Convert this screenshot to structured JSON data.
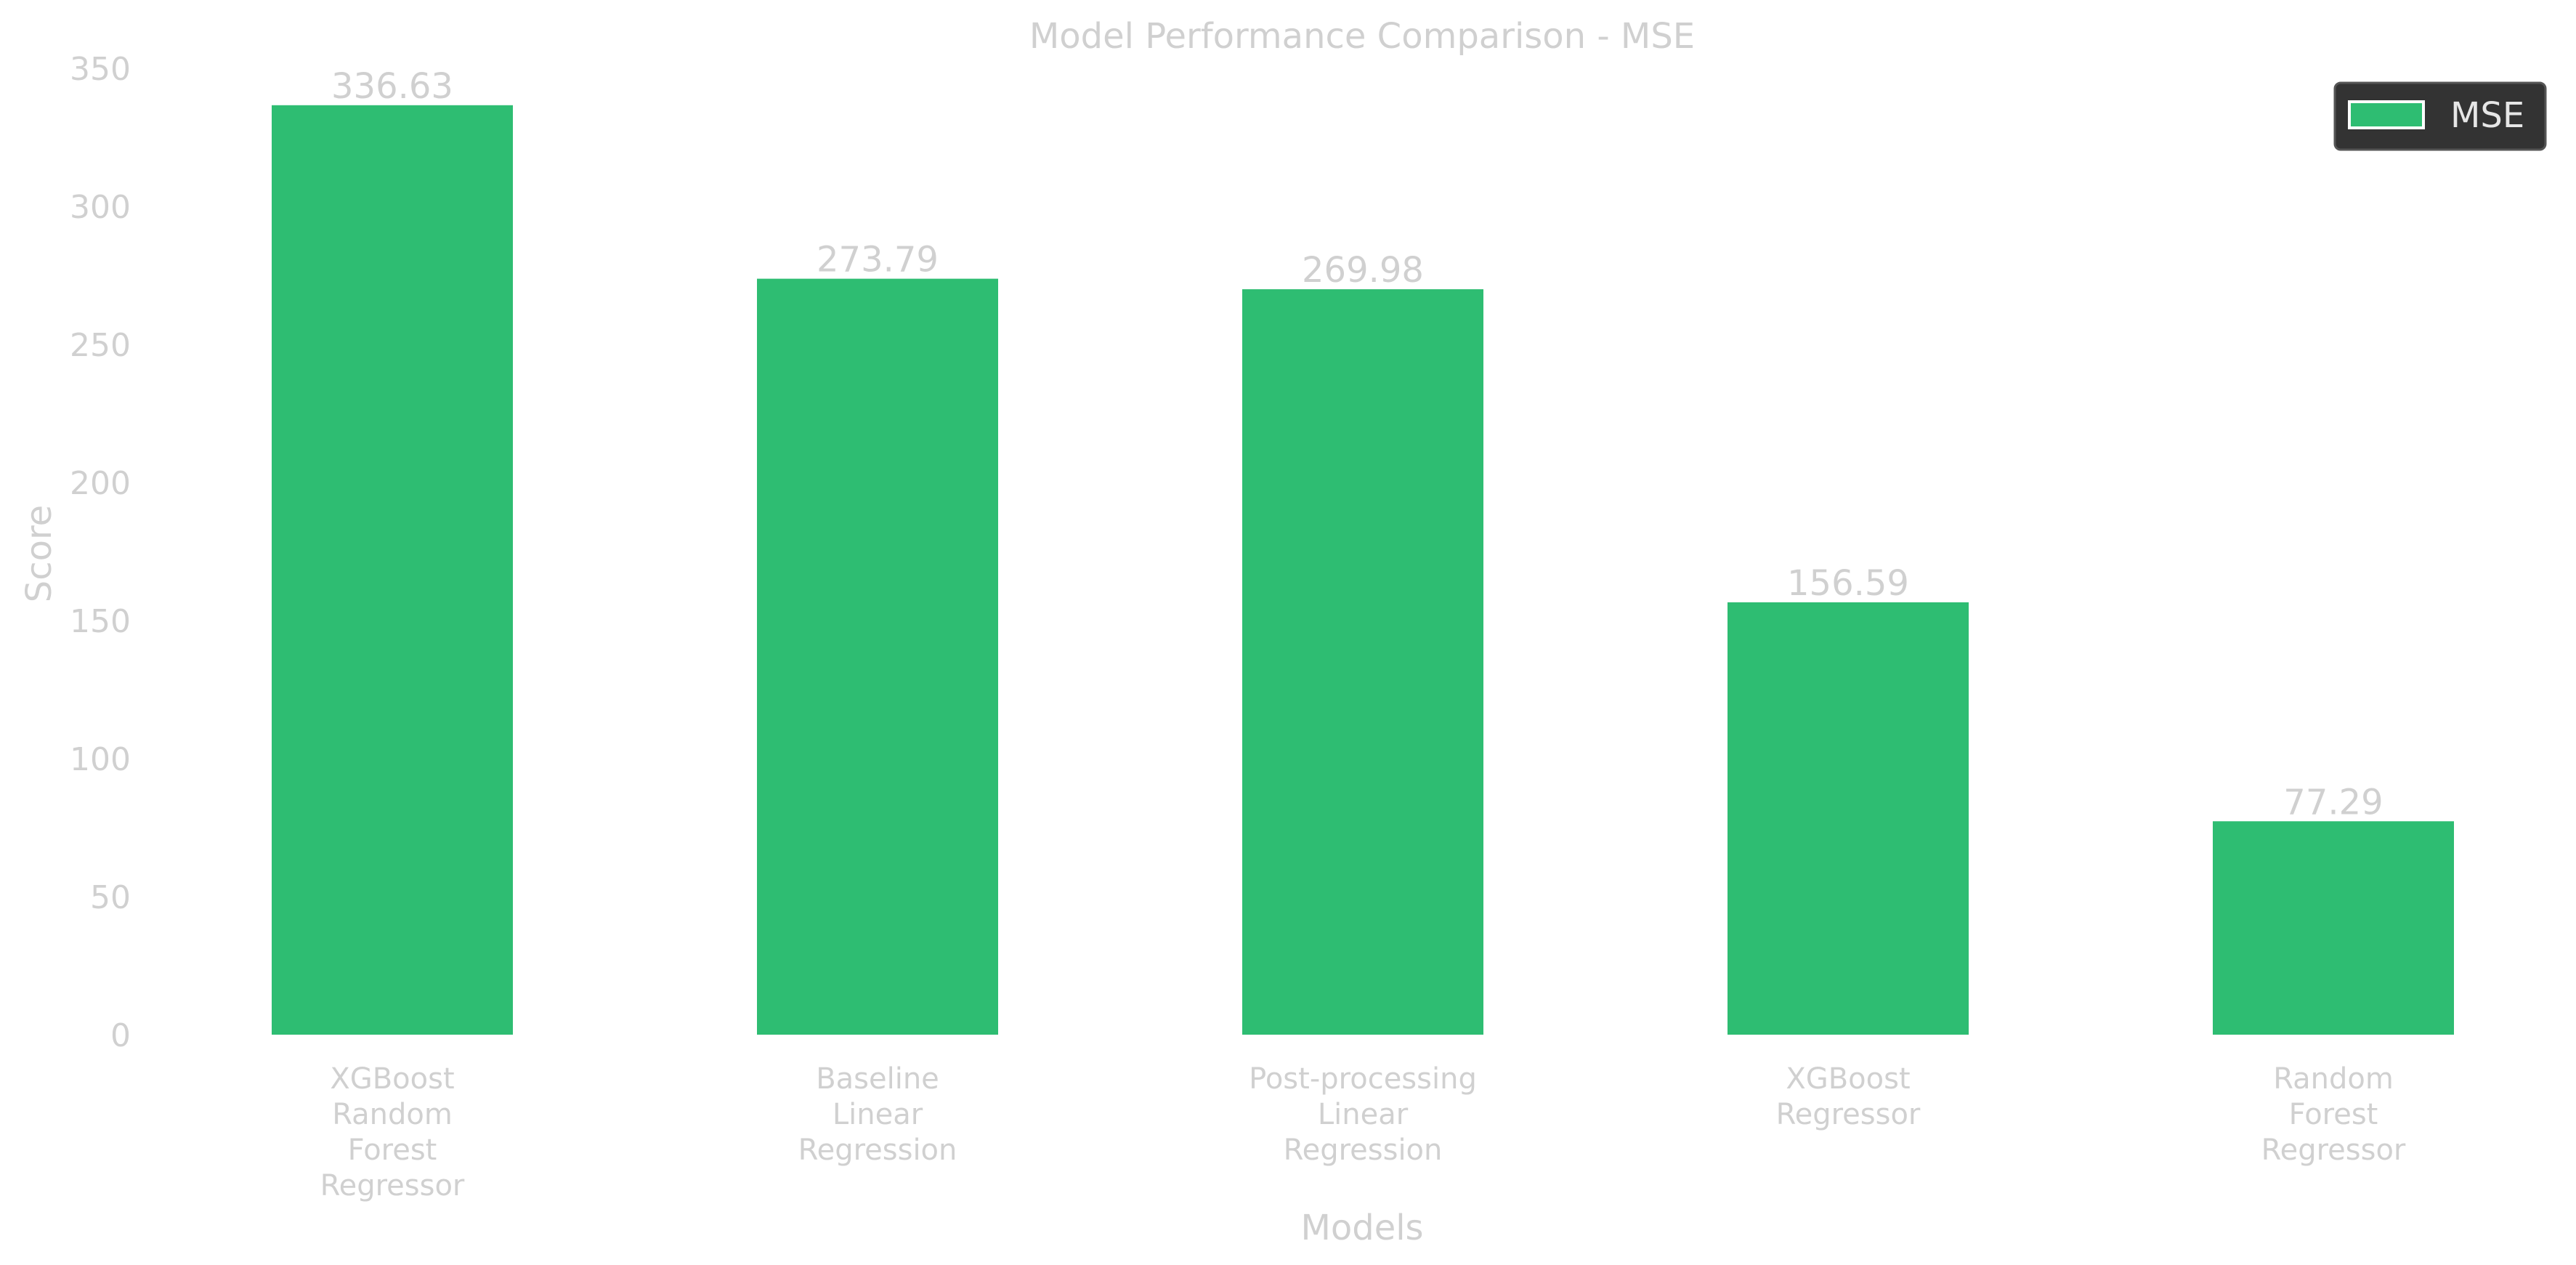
{
  "chart_data": {
    "type": "bar",
    "title": "Model Performance Comparison - MSE",
    "xlabel": "Models",
    "ylabel": "Score",
    "categories": [
      [
        "XGBoost",
        "Random",
        "Forest",
        "Regressor"
      ],
      [
        "Baseline",
        "Linear",
        "Regression"
      ],
      [
        "Post-processing",
        "Linear",
        "Regression"
      ],
      [
        "XGBoost",
        "Regressor"
      ],
      [
        "Random",
        "Forest",
        "Regressor"
      ]
    ],
    "series": [
      {
        "name": "MSE",
        "values": [
          336.63,
          273.79,
          269.98,
          156.59,
          77.29
        ],
        "value_labels": [
          "336.63",
          "273.79",
          "269.98",
          "156.59",
          "77.29"
        ],
        "color": "#2ebd72"
      }
    ],
    "ylim": [
      0,
      350
    ],
    "yticks": [
      0,
      50,
      100,
      150,
      200,
      250,
      300,
      350
    ],
    "grid": false,
    "legend": {
      "position": "top-right",
      "background": "#333333",
      "border": "#555555"
    },
    "text_color": "#d0d0d0"
  }
}
